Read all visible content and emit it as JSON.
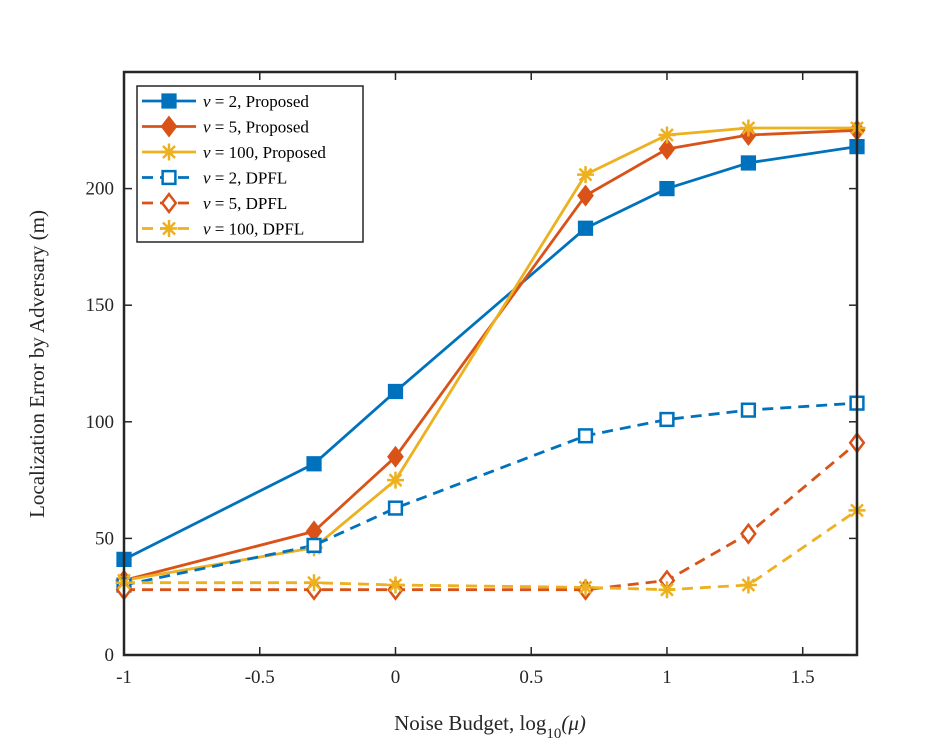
{
  "chart_data": {
    "type": "line",
    "title": "",
    "xlabel_prefix": "Noise Budget, log",
    "xlabel_sub": "10",
    "xlabel_arg": "(μ)",
    "ylabel": "Localization Error by Adversary (m)",
    "xlim": [
      -1,
      1.7
    ],
    "ylim": [
      0,
      250
    ],
    "xticks": [
      -1,
      -0.5,
      0,
      0.5,
      1,
      1.5
    ],
    "xtick_labels": [
      "-1",
      "-0.5",
      "0",
      "0.5",
      "1",
      "1.5"
    ],
    "yticks": [
      0,
      50,
      100,
      150,
      200
    ],
    "ytick_labels": [
      "0",
      "50",
      "100",
      "150",
      "200"
    ],
    "legend_position": "top-left",
    "x": [
      -1,
      -0.3,
      0,
      0.7,
      1,
      1.3,
      1.7
    ],
    "series": [
      {
        "name": "ν = 2, Proposed",
        "nu": "ν",
        "suffix": " = 2, Proposed",
        "color": "#0072BD",
        "dash": "solid",
        "marker": "square",
        "filled": true,
        "values": [
          41,
          82,
          113,
          183,
          200,
          211,
          218
        ]
      },
      {
        "name": "ν = 5, Proposed",
        "nu": "ν",
        "suffix": " = 5, Proposed",
        "color": "#D95319",
        "dash": "solid",
        "marker": "diamond",
        "filled": true,
        "values": [
          32,
          53,
          85,
          197,
          217,
          223,
          225
        ]
      },
      {
        "name": "ν = 100, Proposed",
        "nu": "ν",
        "suffix": " = 100, Proposed",
        "color": "#EDB120",
        "dash": "solid",
        "marker": "star",
        "filled": true,
        "values": [
          32,
          46,
          75,
          206,
          223,
          226,
          226
        ]
      },
      {
        "name": "ν = 2, DPFL",
        "nu": "ν",
        "suffix": " = 2, DPFL",
        "color": "#0072BD",
        "dash": "dashed",
        "marker": "square",
        "filled": false,
        "values": [
          30,
          47,
          63,
          94,
          101,
          105,
          108
        ]
      },
      {
        "name": "ν = 5, DPFL",
        "nu": "ν",
        "suffix": " = 5, DPFL",
        "color": "#D95319",
        "dash": "dashed",
        "marker": "diamond",
        "filled": false,
        "values": [
          28,
          28,
          28,
          28,
          32,
          52,
          91
        ]
      },
      {
        "name": "ν = 100, DPFL",
        "nu": "ν",
        "suffix": " = 100, DPFL",
        "color": "#EDB120",
        "dash": "dashed",
        "marker": "star",
        "filled": false,
        "values": [
          31,
          31,
          30,
          29,
          28,
          30,
          62
        ]
      }
    ]
  },
  "colors": {
    "axis": "#262626",
    "background": "#ffffff"
  }
}
